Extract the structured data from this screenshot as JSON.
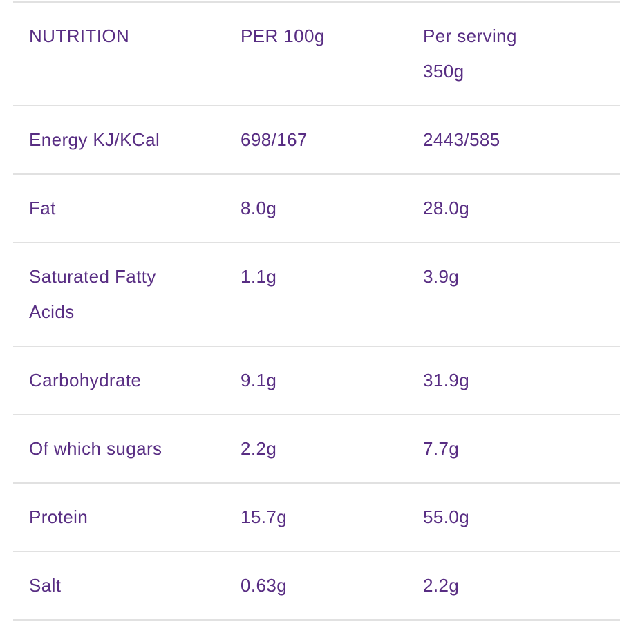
{
  "theme": {
    "text_color": "#582d83",
    "divider_color": "#e1e1e1",
    "background_color": "#ffffff"
  },
  "table": {
    "header": {
      "nutrient": "NUTRITION",
      "per_100g": "PER 100g",
      "per_serving": "Per serving 350g"
    },
    "rows": [
      {
        "label": "Energy KJ/KCal",
        "per_100g": "698/167",
        "per_serving": "2443/585"
      },
      {
        "label": "Fat",
        "per_100g": "8.0g",
        "per_serving": "28.0g"
      },
      {
        "label": "Saturated Fatty Acids",
        "per_100g": "1.1g",
        "per_serving": "3.9g"
      },
      {
        "label": "Carbohydrate",
        "per_100g": "9.1g",
        "per_serving": "31.9g"
      },
      {
        "label": "Of which sugars",
        "per_100g": "2.2g",
        "per_serving": "7.7g"
      },
      {
        "label": "Protein",
        "per_100g": "15.7g",
        "per_serving": "55.0g"
      },
      {
        "label": "Salt",
        "per_100g": "0.63g",
        "per_serving": "2.2g"
      }
    ]
  },
  "chart_data": {
    "type": "table",
    "columns": [
      "NUTRITION",
      "PER 100g",
      "Per serving 350g"
    ],
    "rows": [
      [
        "Energy KJ/KCal",
        "698/167",
        "2443/585"
      ],
      [
        "Fat",
        "8.0g",
        "28.0g"
      ],
      [
        "Saturated Fatty Acids",
        "1.1g",
        "3.9g"
      ],
      [
        "Carbohydrate",
        "9.1g",
        "31.9g"
      ],
      [
        "Of which sugars",
        "2.2g",
        "7.7g"
      ],
      [
        "Protein",
        "15.7g",
        "55.0g"
      ],
      [
        "Salt",
        "0.63g",
        "2.2g"
      ]
    ]
  }
}
